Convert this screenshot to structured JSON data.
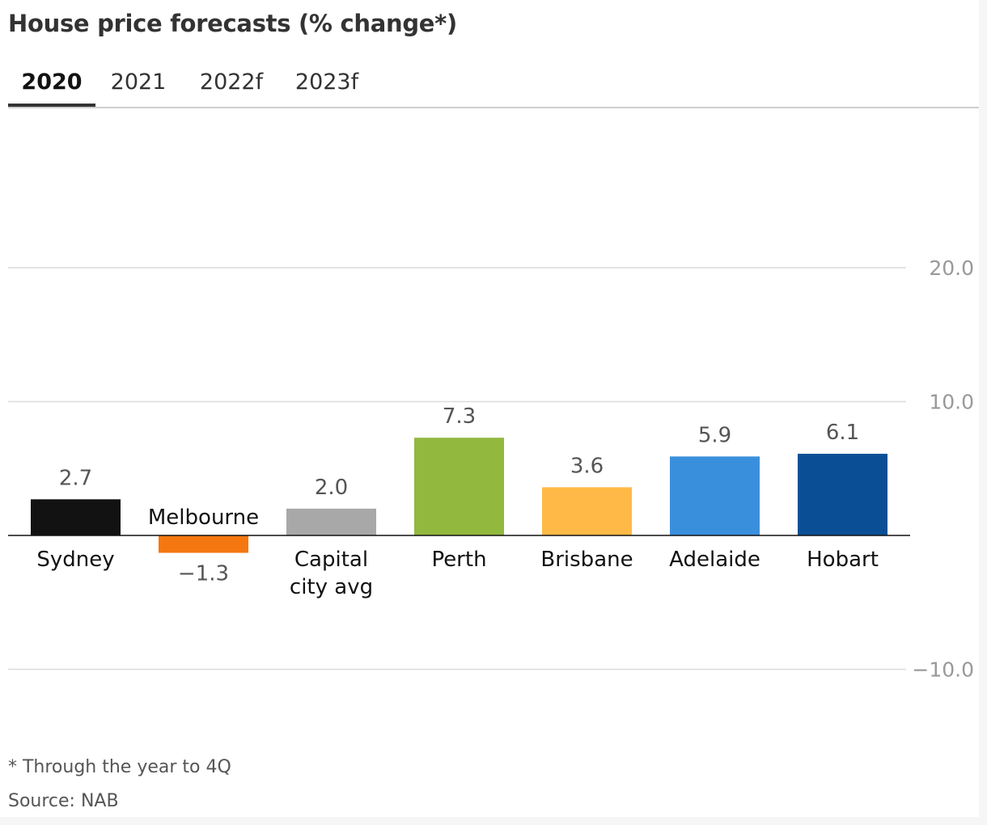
{
  "title": "House price forecasts (% change*)",
  "tabs": [
    {
      "label": "2020",
      "active": true
    },
    {
      "label": "2021",
      "active": false
    },
    {
      "label": "2022f",
      "active": false
    },
    {
      "label": "2023f",
      "active": false
    }
  ],
  "footnote": "* Through the year to 4Q",
  "source": "Source: NAB",
  "chart_data": {
    "type": "bar",
    "categories": [
      "Sydney",
      "Melbourne",
      "Capital city avg",
      "Perth",
      "Brisbane",
      "Adelaide",
      "Hobart"
    ],
    "category_lines": [
      [
        "Sydney"
      ],
      [
        "Melbourne"
      ],
      [
        "Capital",
        "city avg"
      ],
      [
        "Perth"
      ],
      [
        "Brisbane"
      ],
      [
        "Adelaide"
      ],
      [
        "Hobart"
      ]
    ],
    "values": [
      2.7,
      -1.3,
      2.0,
      7.3,
      3.6,
      5.9,
      6.1
    ],
    "value_labels": [
      "2.7",
      "−1.3",
      "2.0",
      "7.3",
      "3.6",
      "5.9",
      "6.1"
    ],
    "colors": [
      "#121212",
      "#f5770f",
      "#a8a8a8",
      "#92b83e",
      "#ffb946",
      "#3a8fdd",
      "#0a4f96"
    ],
    "ylim": [
      -20,
      30
    ],
    "yticks": [
      20,
      10,
      -10
    ],
    "ytick_labels": [
      "20.0",
      "10.0",
      "−10.0"
    ],
    "grid": true
  }
}
